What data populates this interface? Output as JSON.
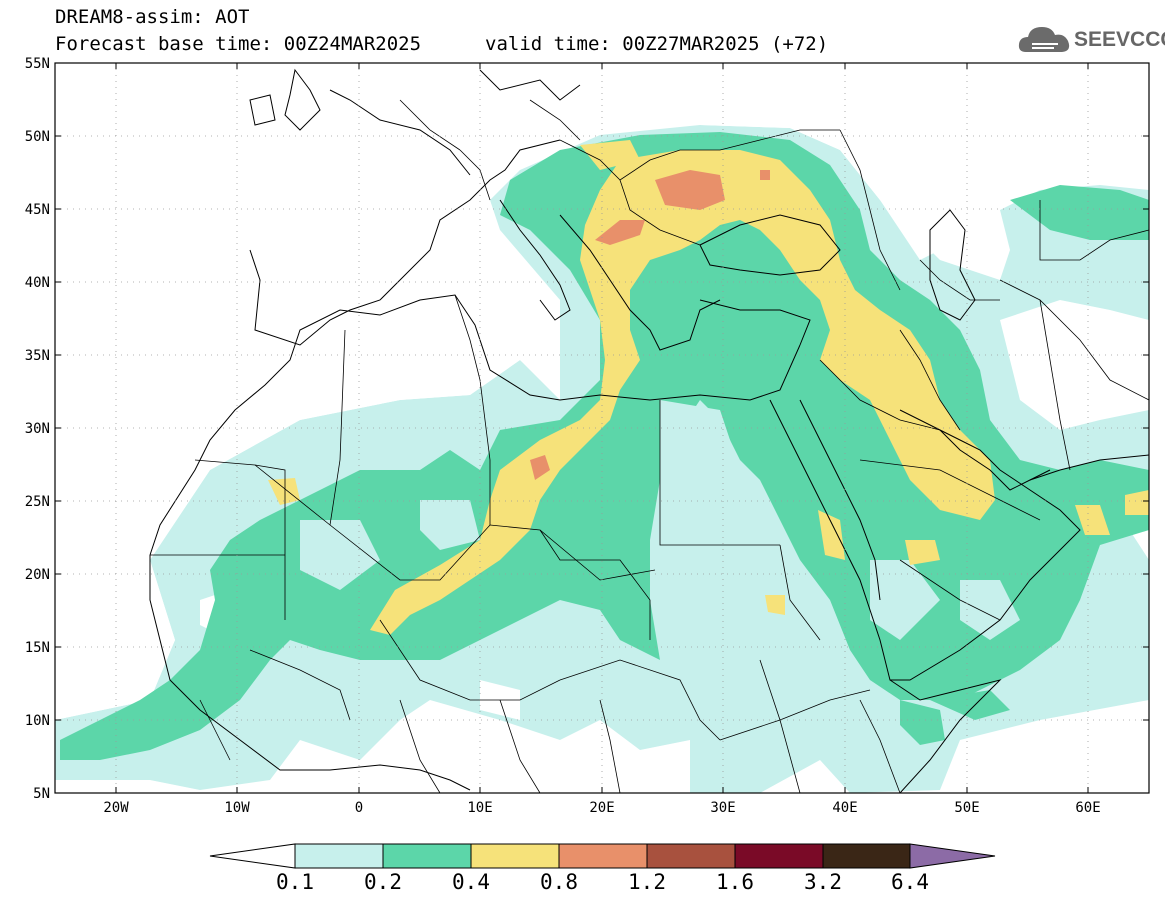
{
  "header": {
    "title": "DREAM8-assim: AOT",
    "base_time": "Forecast base time: 00Z24MAR2025",
    "valid_time": "valid time: 00Z27MAR2025 (+72)"
  },
  "logo": {
    "text": "SEEVCCC",
    "icon": "cloud-icon"
  },
  "map": {
    "product": "Aerosol optical thickness (AOT) forecast",
    "lat_labels": [
      "55N",
      "50N",
      "45N",
      "40N",
      "35N",
      "30N",
      "25N",
      "20N",
      "15N",
      "10N",
      "5N"
    ],
    "lon_labels": [
      "20W",
      "10W",
      "0",
      "10E",
      "20E",
      "30E",
      "40E",
      "50E",
      "60E"
    ],
    "lat_range": [
      5,
      55
    ],
    "lon_range": [
      -25,
      65
    ],
    "grid": "dotted"
  },
  "colorbar": {
    "thresholds": [
      "0.1",
      "0.2",
      "0.4",
      "0.8",
      "1.2",
      "1.6",
      "3.2",
      "6.4"
    ],
    "colors": [
      "#ffffff",
      "#c7f0ec",
      "#5cd6a9",
      "#f6e27a",
      "#e8906a",
      "#a8513e",
      "#7a0a27",
      "#3a2616",
      "#8c6ba6"
    ]
  }
}
